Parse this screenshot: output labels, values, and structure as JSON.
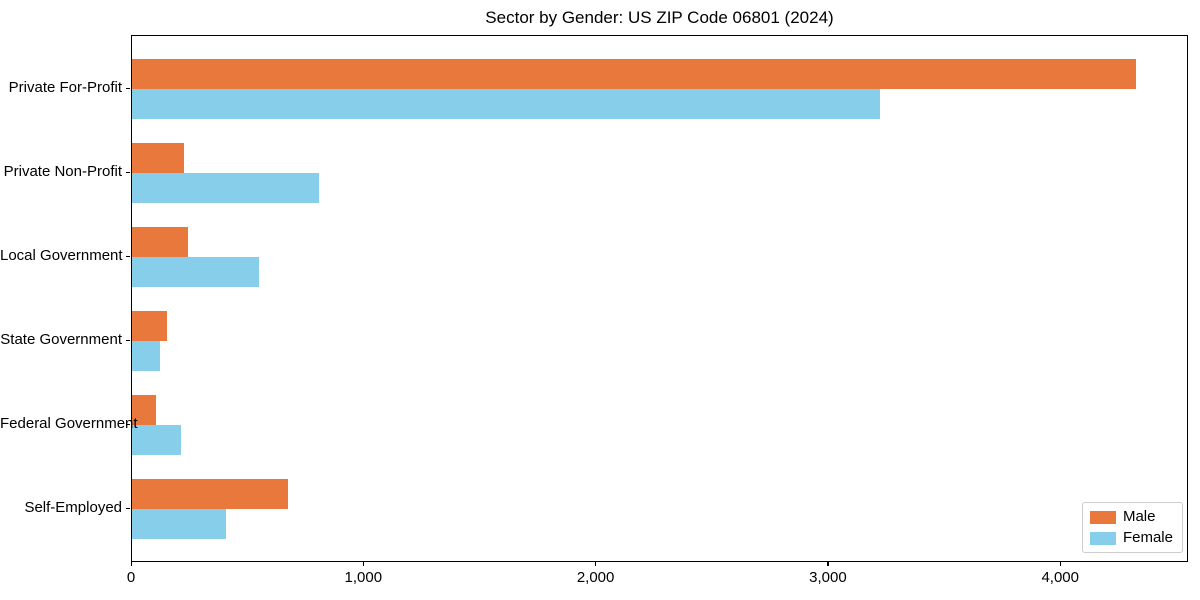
{
  "chart_data": {
    "type": "bar",
    "orientation": "horizontal",
    "title": "Sector by Gender: US ZIP Code 06801 (2024)",
    "categories": [
      "Private For-Profit",
      "Private Non-Profit",
      "Local Government",
      "State Government",
      "Federal Government",
      "Self-Employed"
    ],
    "series": [
      {
        "name": "Male",
        "color": "#e8783c",
        "values": [
          4320,
          225,
          240,
          150,
          105,
          670
        ]
      },
      {
        "name": "Female",
        "color": "#87ceeb",
        "values": [
          3220,
          805,
          545,
          122,
          210,
          405
        ]
      }
    ],
    "xlabel": "",
    "ylabel": "",
    "xlim": [
      0,
      4550
    ],
    "x_ticks": [
      0,
      1000,
      2000,
      3000,
      4000
    ],
    "x_tick_labels": [
      "0",
      "1,000",
      "2,000",
      "3,000",
      "4,000"
    ],
    "grid": false,
    "legend_position": "lower right",
    "colors": {
      "axis": "#000000",
      "legend_border": "#cccccc",
      "background": "#ffffff"
    }
  }
}
